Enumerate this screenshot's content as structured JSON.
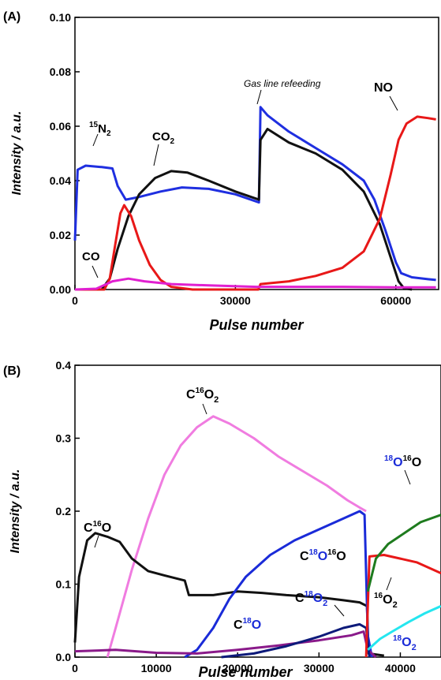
{
  "chart_data": [
    {
      "panel_label": "(A)",
      "type": "line",
      "xlabel": "Pulse number",
      "ylabel": "Intensity / a.u.",
      "xlim": [
        0,
        68000
      ],
      "ylim": [
        0,
        0.1
      ],
      "xticks": [
        0,
        30000,
        60000
      ],
      "xtick_labels": [
        "0",
        "30000",
        "60000"
      ],
      "yticks": [
        0.0,
        0.02,
        0.04,
        0.06,
        0.08,
        0.1
      ],
      "ytick_labels": [
        "0.00",
        "0.02",
        "0.04",
        "0.06",
        "0.08",
        "0.10"
      ],
      "grid": false,
      "series": [
        {
          "color": "#1f2fe0",
          "points": [
            [
              0,
              0.018
            ],
            [
              500,
              0.044
            ],
            [
              2000,
              0.0455
            ],
            [
              5000,
              0.045
            ],
            [
              7000,
              0.0445
            ],
            [
              8000,
              0.038
            ],
            [
              9500,
              0.033
            ],
            [
              12000,
              0.034
            ],
            [
              16000,
              0.036
            ],
            [
              20000,
              0.0375
            ],
            [
              25000,
              0.037
            ],
            [
              30000,
              0.035
            ],
            [
              34400,
              0.032
            ],
            [
              34700,
              0.067
            ],
            [
              36000,
              0.064
            ],
            [
              40000,
              0.058
            ],
            [
              45000,
              0.052
            ],
            [
              50000,
              0.046
            ],
            [
              54000,
              0.04
            ],
            [
              56000,
              0.033
            ],
            [
              58000,
              0.022
            ],
            [
              60000,
              0.01
            ],
            [
              61000,
              0.006
            ],
            [
              63000,
              0.0045
            ],
            [
              66000,
              0.0038
            ],
            [
              67500,
              0.0035
            ]
          ]
        },
        {
          "color": "#111111",
          "points": [
            [
              0,
              0.0
            ],
            [
              5000,
              0.0
            ],
            [
              6500,
              0.004
            ],
            [
              8000,
              0.015
            ],
            [
              10000,
              0.027
            ],
            [
              12000,
              0.035
            ],
            [
              15000,
              0.041
            ],
            [
              18000,
              0.0435
            ],
            [
              21000,
              0.043
            ],
            [
              25000,
              0.04
            ],
            [
              30000,
              0.036
            ],
            [
              34400,
              0.033
            ],
            [
              34700,
              0.055
            ],
            [
              36000,
              0.059
            ],
            [
              40000,
              0.054
            ],
            [
              45000,
              0.05
            ],
            [
              50000,
              0.044
            ],
            [
              54000,
              0.036
            ],
            [
              57000,
              0.024
            ],
            [
              59000,
              0.012
            ],
            [
              60500,
              0.003
            ],
            [
              61500,
              0.0005
            ],
            [
              63000,
              0.0
            ]
          ]
        },
        {
          "color": "#e81818",
          "points": [
            [
              0,
              0.0
            ],
            [
              5500,
              0.0
            ],
            [
              6500,
              0.004
            ],
            [
              7500,
              0.016
            ],
            [
              8500,
              0.028
            ],
            [
              9200,
              0.031
            ],
            [
              10500,
              0.027
            ],
            [
              12000,
              0.018
            ],
            [
              14000,
              0.009
            ],
            [
              16000,
              0.0035
            ],
            [
              18000,
              0.001
            ],
            [
              22000,
              0.0
            ],
            [
              34300,
              0.0
            ],
            [
              34700,
              0.002
            ],
            [
              40000,
              0.003
            ],
            [
              45000,
              0.005
            ],
            [
              50000,
              0.008
            ],
            [
              54000,
              0.014
            ],
            [
              57000,
              0.026
            ],
            [
              59000,
              0.042
            ],
            [
              60500,
              0.055
            ],
            [
              62000,
              0.061
            ],
            [
              64000,
              0.0635
            ],
            [
              66000,
              0.063
            ],
            [
              67500,
              0.0625
            ]
          ]
        },
        {
          "color": "#e020d0",
          "points": [
            [
              0,
              0.0
            ],
            [
              4000,
              0.0003
            ],
            [
              7000,
              0.003
            ],
            [
              10000,
              0.004
            ],
            [
              13000,
              0.003
            ],
            [
              18000,
              0.002
            ],
            [
              25000,
              0.0015
            ],
            [
              34000,
              0.001
            ],
            [
              40000,
              0.001
            ],
            [
              50000,
              0.001
            ],
            [
              60000,
              0.0008
            ],
            [
              67500,
              0.0008
            ]
          ]
        }
      ],
      "annotations": [
        {
          "base": "15",
          "main": "N",
          "sub": "2"
        },
        {
          "main": "CO",
          "sub": "2"
        },
        {
          "main": "CO"
        },
        {
          "main": "NO"
        },
        {
          "main": "Gas line refeeding"
        }
      ]
    },
    {
      "panel_label": "(B)",
      "type": "line",
      "xlabel": "Pulse number",
      "ylabel": "Intensity / a.u.",
      "xlim": [
        0,
        45000
      ],
      "ylim": [
        0,
        0.4
      ],
      "xticks": [
        0,
        10000,
        20000,
        30000,
        40000
      ],
      "xtick_labels": [
        "0",
        "10000",
        "20000",
        "30000",
        "40000"
      ],
      "yticks": [
        0.0,
        0.1,
        0.2,
        0.3,
        0.4
      ],
      "ytick_labels": [
        "0.0",
        "0.1",
        "0.2",
        "0.3",
        "0.4"
      ],
      "grid": false,
      "series": [
        {
          "color": "#f07ce0",
          "points": [
            [
              4000,
              0.0
            ],
            [
              5000,
              0.04
            ],
            [
              7000,
              0.12
            ],
            [
              9000,
              0.19
            ],
            [
              11000,
              0.25
            ],
            [
              13000,
              0.29
            ],
            [
              15000,
              0.315
            ],
            [
              17000,
              0.33
            ],
            [
              19000,
              0.32
            ],
            [
              22000,
              0.3
            ],
            [
              25000,
              0.275
            ],
            [
              28000,
              0.255
            ],
            [
              31000,
              0.235
            ],
            [
              33500,
              0.215
            ],
            [
              35000,
              0.205
            ],
            [
              35800,
              0.2
            ]
          ]
        },
        {
          "color": "#111111",
          "points": [
            [
              0,
              0.02
            ],
            [
              500,
              0.11
            ],
            [
              1500,
              0.16
            ],
            [
              2500,
              0.17
            ],
            [
              4000,
              0.165
            ],
            [
              5500,
              0.158
            ],
            [
              7000,
              0.135
            ],
            [
              9000,
              0.118
            ],
            [
              11000,
              0.112
            ],
            [
              13500,
              0.105
            ],
            [
              14000,
              0.085
            ],
            [
              17000,
              0.085
            ],
            [
              20000,
              0.09
            ],
            [
              23000,
              0.088
            ],
            [
              26000,
              0.085
            ],
            [
              30000,
              0.082
            ],
            [
              33000,
              0.078
            ],
            [
              35000,
              0.075
            ],
            [
              35900,
              0.07
            ],
            [
              36100,
              0.005
            ],
            [
              38000,
              0.002
            ]
          ]
        },
        {
          "color": "#1a2bd8",
          "points": [
            [
              13500,
              0.0
            ],
            [
              15000,
              0.01
            ],
            [
              17000,
              0.04
            ],
            [
              19000,
              0.08
            ],
            [
              21000,
              0.11
            ],
            [
              24000,
              0.14
            ],
            [
              27000,
              0.16
            ],
            [
              30000,
              0.175
            ],
            [
              33000,
              0.19
            ],
            [
              35000,
              0.2
            ],
            [
              35600,
              0.195
            ],
            [
              36000,
              0.03
            ],
            [
              36500,
              0.0
            ]
          ]
        },
        {
          "color": "#8a1a8a",
          "points": [
            [
              0,
              0.008
            ],
            [
              5000,
              0.01
            ],
            [
              10000,
              0.006
            ],
            [
              15000,
              0.005
            ],
            [
              20000,
              0.01
            ],
            [
              25000,
              0.016
            ],
            [
              30000,
              0.023
            ],
            [
              34000,
              0.03
            ],
            [
              35500,
              0.035
            ],
            [
              36000,
              0.01
            ],
            [
              37000,
              0.0
            ]
          ]
        },
        {
          "color": "#0d1a7a",
          "points": [
            [
              18000,
              0.0
            ],
            [
              22000,
              0.005
            ],
            [
              26000,
              0.015
            ],
            [
              30000,
              0.028
            ],
            [
              33000,
              0.04
            ],
            [
              35000,
              0.045
            ],
            [
              35800,
              0.04
            ],
            [
              36200,
              0.0
            ]
          ]
        },
        {
          "color": "#e81818",
          "points": [
            [
              35800,
              0.0
            ],
            [
              36200,
              0.138
            ],
            [
              38000,
              0.14
            ],
            [
              40000,
              0.135
            ],
            [
              42000,
              0.13
            ],
            [
              44000,
              0.12
            ],
            [
              45000,
              0.115
            ]
          ]
        },
        {
          "color": "#1e7b1e",
          "points": [
            [
              36000,
              0.09
            ],
            [
              37000,
              0.135
            ],
            [
              38500,
              0.155
            ],
            [
              40500,
              0.17
            ],
            [
              42500,
              0.185
            ],
            [
              45000,
              0.195
            ]
          ]
        },
        {
          "color": "#25e6ef",
          "points": [
            [
              36000,
              0.01
            ],
            [
              37500,
              0.025
            ],
            [
              39000,
              0.035
            ],
            [
              41000,
              0.048
            ],
            [
              43000,
              0.06
            ],
            [
              45000,
              0.07
            ]
          ]
        }
      ],
      "annotations": [
        {
          "main": "C",
          "sup1": "16",
          "tail": "O"
        },
        {
          "main": "C",
          "sup1": "16",
          "tail": "O",
          "sub": "2"
        },
        {
          "main": "C",
          "sup1": "18",
          "mid": "O",
          "sup2": "16",
          "tail": "O"
        },
        {
          "sup1": "18",
          "mid": "O",
          "sup2": "16",
          "tail": "O"
        },
        {
          "sup1": "16",
          "tail": "O",
          "sub": "2"
        },
        {
          "main": "C",
          "sup1": "18",
          "mid": "O"
        },
        {
          "main": "C",
          "sup1": "18",
          "mid": "O",
          "sub": "2"
        },
        {
          "sup1": "18",
          "mid": "O",
          "sub": "2"
        }
      ]
    }
  ]
}
